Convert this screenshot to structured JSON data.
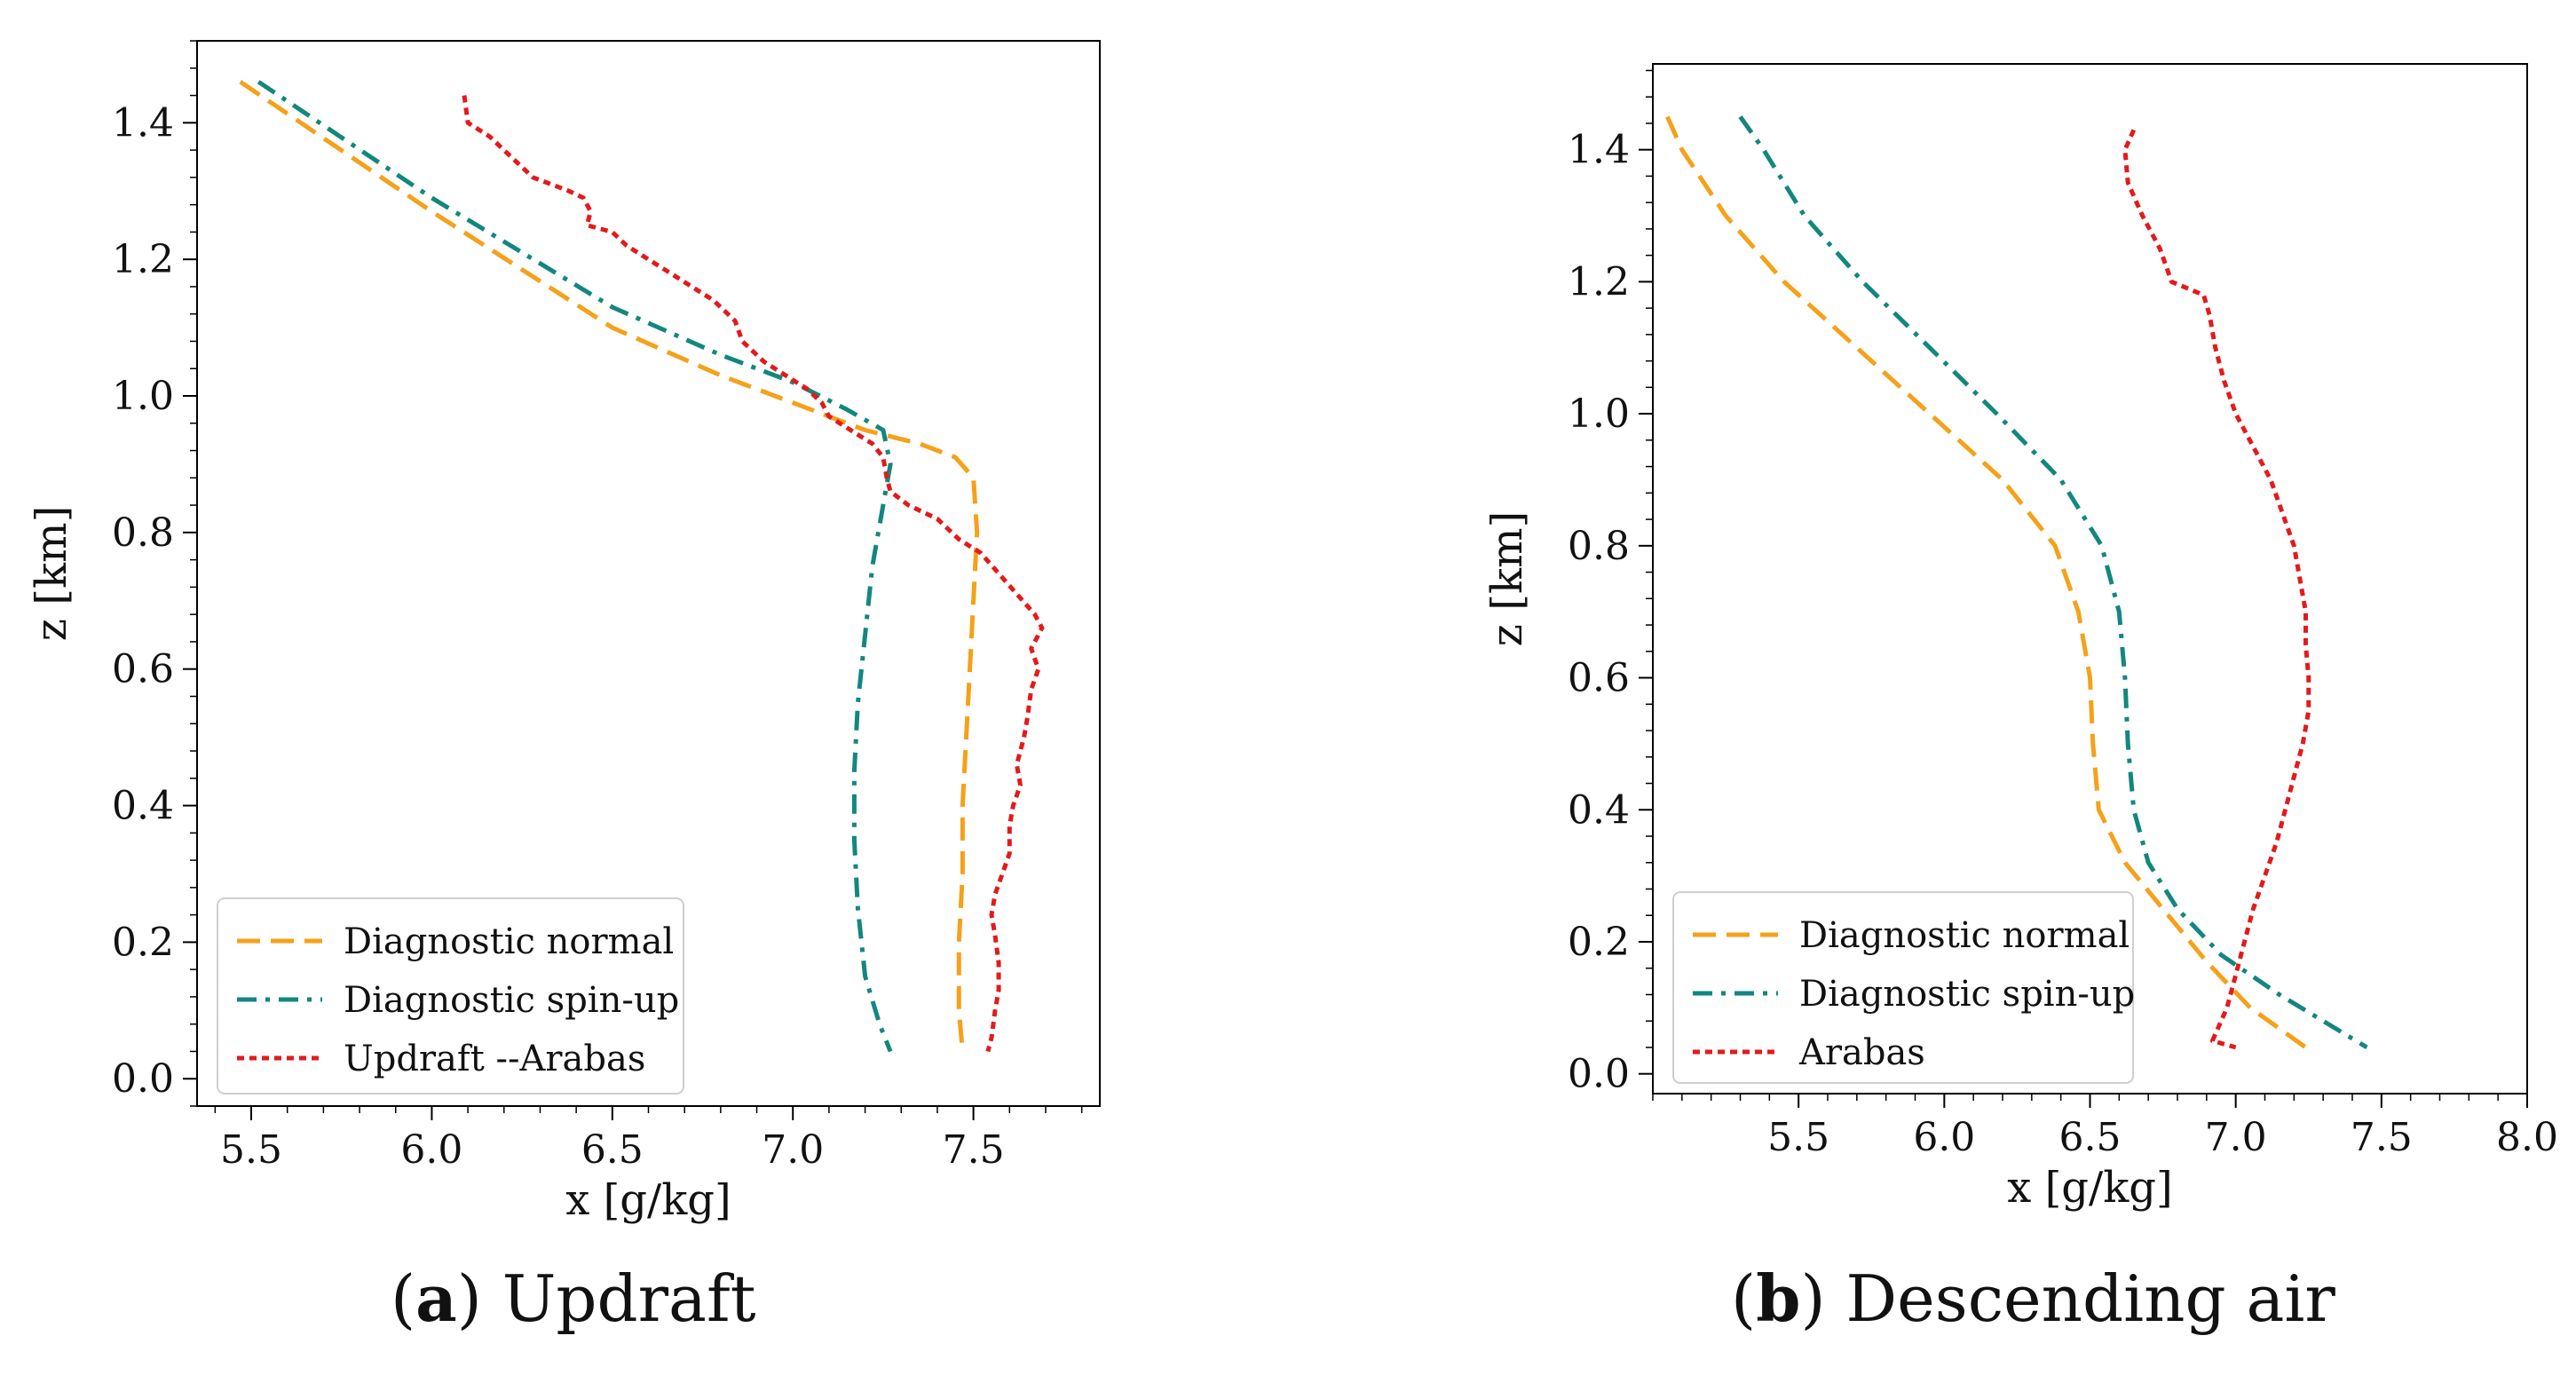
{
  "chart_data": [
    {
      "type": "line",
      "panel": "a",
      "caption_letter": "a",
      "caption_text": "Updraft",
      "xlabel": "x [g/kg]",
      "ylabel": "z [km]",
      "xlim": [
        5.35,
        7.85
      ],
      "ylim": [
        -0.04,
        1.52
      ],
      "xticks": [
        5.5,
        6.0,
        6.5,
        7.0,
        7.5
      ],
      "xtick_labels": [
        "5.5",
        "6.0",
        "6.5",
        "7.0",
        "7.5"
      ],
      "yticks": [
        0.0,
        0.2,
        0.4,
        0.6,
        0.8,
        1.0,
        1.2,
        1.4
      ],
      "ytick_labels": [
        "0.0",
        "0.2",
        "0.4",
        "0.6",
        "0.8",
        "1.0",
        "1.2",
        "1.4"
      ],
      "legend_position": "lower-left",
      "series": [
        {
          "name": "Diagnostic normal",
          "color": "#f5a11a",
          "style": "dashed",
          "points": [
            [
              5.47,
              1.46
            ],
            [
              6.0,
              1.27
            ],
            [
              6.5,
              1.1
            ],
            [
              6.8,
              1.03
            ],
            [
              7.0,
              0.99
            ],
            [
              7.2,
              0.95
            ],
            [
              7.35,
              0.93
            ],
            [
              7.45,
              0.91
            ],
            [
              7.5,
              0.88
            ],
            [
              7.51,
              0.8
            ],
            [
              7.5,
              0.7
            ],
            [
              7.49,
              0.6
            ],
            [
              7.48,
              0.5
            ],
            [
              7.47,
              0.4
            ],
            [
              7.47,
              0.3
            ],
            [
              7.46,
              0.2
            ],
            [
              7.46,
              0.1
            ],
            [
              7.47,
              0.04
            ]
          ]
        },
        {
          "name": "Diagnostic spin-up",
          "color": "#13877f",
          "style": "dashdot",
          "points": [
            [
              5.52,
              1.46
            ],
            [
              6.0,
              1.29
            ],
            [
              6.5,
              1.13
            ],
            [
              6.8,
              1.06
            ],
            [
              7.0,
              1.02
            ],
            [
              7.15,
              0.98
            ],
            [
              7.25,
              0.95
            ],
            [
              7.27,
              0.9
            ],
            [
              7.25,
              0.84
            ],
            [
              7.22,
              0.75
            ],
            [
              7.2,
              0.65
            ],
            [
              7.18,
              0.55
            ],
            [
              7.17,
              0.45
            ],
            [
              7.17,
              0.35
            ],
            [
              7.18,
              0.25
            ],
            [
              7.2,
              0.15
            ],
            [
              7.24,
              0.08
            ],
            [
              7.27,
              0.04
            ]
          ]
        },
        {
          "name": "Updraft --Arabas",
          "color": "#e31a1c",
          "style": "dotted",
          "points": [
            [
              6.09,
              1.44
            ],
            [
              6.1,
              1.4
            ],
            [
              6.16,
              1.38
            ],
            [
              6.22,
              1.35
            ],
            [
              6.28,
              1.32
            ],
            [
              6.38,
              1.3
            ],
            [
              6.42,
              1.29
            ],
            [
              6.44,
              1.27
            ],
            [
              6.43,
              1.25
            ],
            [
              6.5,
              1.24
            ],
            [
              6.54,
              1.22
            ],
            [
              6.6,
              1.2
            ],
            [
              6.66,
              1.18
            ],
            [
              6.72,
              1.16
            ],
            [
              6.78,
              1.14
            ],
            [
              6.84,
              1.11
            ],
            [
              6.86,
              1.08
            ],
            [
              6.92,
              1.05
            ],
            [
              6.98,
              1.03
            ],
            [
              7.04,
              1.01
            ],
            [
              7.08,
              0.99
            ],
            [
              7.1,
              0.97
            ],
            [
              7.16,
              0.95
            ],
            [
              7.22,
              0.93
            ],
            [
              7.25,
              0.91
            ],
            [
              7.26,
              0.88
            ],
            [
              7.27,
              0.86
            ],
            [
              7.32,
              0.84
            ],
            [
              7.4,
              0.82
            ],
            [
              7.46,
              0.79
            ],
            [
              7.52,
              0.77
            ],
            [
              7.57,
              0.74
            ],
            [
              7.62,
              0.71
            ],
            [
              7.67,
              0.68
            ],
            [
              7.69,
              0.66
            ],
            [
              7.66,
              0.63
            ],
            [
              7.68,
              0.6
            ],
            [
              7.66,
              0.57
            ],
            [
              7.65,
              0.53
            ],
            [
              7.64,
              0.5
            ],
            [
              7.62,
              0.46
            ],
            [
              7.63,
              0.43
            ],
            [
              7.61,
              0.4
            ],
            [
              7.6,
              0.37
            ],
            [
              7.6,
              0.33
            ],
            [
              7.58,
              0.3
            ],
            [
              7.56,
              0.27
            ],
            [
              7.55,
              0.24
            ],
            [
              7.56,
              0.21
            ],
            [
              7.57,
              0.17
            ],
            [
              7.57,
              0.13
            ],
            [
              7.56,
              0.1
            ],
            [
              7.55,
              0.06
            ],
            [
              7.54,
              0.04
            ]
          ]
        }
      ]
    },
    {
      "type": "line",
      "panel": "b",
      "caption_letter": "b",
      "caption_text": "Descending air",
      "xlabel": "x [g/kg]",
      "ylabel": "z [km]",
      "xlim": [
        5.0,
        8.0
      ],
      "ylim": [
        -0.03,
        1.53
      ],
      "xticks": [
        5.5,
        6.0,
        6.5,
        7.0,
        7.5,
        8.0
      ],
      "xtick_labels": [
        "5.5",
        "6.0",
        "6.5",
        "7.0",
        "7.5",
        "8.0"
      ],
      "yticks": [
        0.0,
        0.2,
        0.4,
        0.6,
        0.8,
        1.0,
        1.2,
        1.4
      ],
      "ytick_labels": [
        "0.0",
        "0.2",
        "0.4",
        "0.6",
        "0.8",
        "1.0",
        "1.2",
        "1.4"
      ],
      "legend_position": "lower-left",
      "series": [
        {
          "name": "Diagnostic normal",
          "color": "#f5a11a",
          "style": "dashed",
          "points": [
            [
              5.05,
              1.45
            ],
            [
              5.1,
              1.4
            ],
            [
              5.25,
              1.3
            ],
            [
              5.45,
              1.2
            ],
            [
              5.7,
              1.1
            ],
            [
              5.95,
              1.0
            ],
            [
              6.2,
              0.9
            ],
            [
              6.38,
              0.8
            ],
            [
              6.46,
              0.7
            ],
            [
              6.5,
              0.6
            ],
            [
              6.51,
              0.5
            ],
            [
              6.53,
              0.4
            ],
            [
              6.62,
              0.32
            ],
            [
              6.75,
              0.25
            ],
            [
              6.9,
              0.17
            ],
            [
              7.05,
              0.1
            ],
            [
              7.24,
              0.04
            ]
          ]
        },
        {
          "name": "Diagnostic spin-up",
          "color": "#13877f",
          "style": "dashdot",
          "points": [
            [
              5.3,
              1.45
            ],
            [
              5.38,
              1.4
            ],
            [
              5.52,
              1.3
            ],
            [
              5.72,
              1.2
            ],
            [
              5.95,
              1.1
            ],
            [
              6.18,
              1.0
            ],
            [
              6.4,
              0.9
            ],
            [
              6.54,
              0.8
            ],
            [
              6.6,
              0.7
            ],
            [
              6.62,
              0.6
            ],
            [
              6.63,
              0.5
            ],
            [
              6.65,
              0.4
            ],
            [
              6.7,
              0.32
            ],
            [
              6.8,
              0.25
            ],
            [
              6.95,
              0.18
            ],
            [
              7.15,
              0.12
            ],
            [
              7.3,
              0.08
            ],
            [
              7.45,
              0.04
            ]
          ]
        },
        {
          "name": "Arabas",
          "color": "#e31a1c",
          "style": "dotted",
          "points": [
            [
              6.65,
              1.43
            ],
            [
              6.62,
              1.4
            ],
            [
              6.63,
              1.35
            ],
            [
              6.68,
              1.3
            ],
            [
              6.74,
              1.25
            ],
            [
              6.78,
              1.2
            ],
            [
              6.89,
              1.18
            ],
            [
              6.91,
              1.15
            ],
            [
              6.93,
              1.1
            ],
            [
              6.96,
              1.05
            ],
            [
              7.0,
              1.0
            ],
            [
              7.06,
              0.95
            ],
            [
              7.12,
              0.9
            ],
            [
              7.16,
              0.85
            ],
            [
              7.2,
              0.8
            ],
            [
              7.22,
              0.75
            ],
            [
              7.24,
              0.7
            ],
            [
              7.24,
              0.65
            ],
            [
              7.25,
              0.6
            ],
            [
              7.25,
              0.55
            ],
            [
              7.23,
              0.5
            ],
            [
              7.2,
              0.45
            ],
            [
              7.17,
              0.4
            ],
            [
              7.14,
              0.35
            ],
            [
              7.1,
              0.3
            ],
            [
              7.06,
              0.25
            ],
            [
              7.03,
              0.2
            ],
            [
              7.0,
              0.15
            ],
            [
              6.97,
              0.1
            ],
            [
              6.94,
              0.07
            ],
            [
              6.92,
              0.05
            ],
            [
              7.0,
              0.04
            ]
          ]
        }
      ]
    }
  ]
}
